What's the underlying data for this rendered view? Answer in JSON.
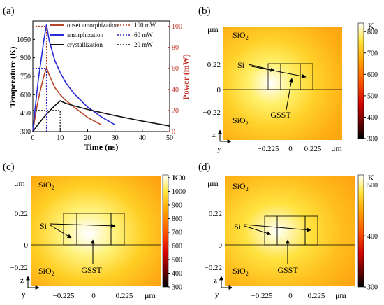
{
  "panel_a": {
    "label": "(a)",
    "xlabel": "Time (ns)",
    "ylabel_left": "Temperature (K)",
    "ylabel_right": "Power (mW)",
    "x_ticks": [
      "0",
      "10",
      "20",
      "30",
      "40",
      "50"
    ],
    "y_ticks_left": [
      "300",
      "450",
      "600",
      "750",
      "900",
      "1050"
    ],
    "y_ticks_right": [
      "0",
      "20",
      "40",
      "60",
      "80",
      "100"
    ],
    "legend_left": [
      "onset amorphization",
      "amorphization",
      "crystallization"
    ],
    "legend_right": [
      "100 mW",
      "60 mW",
      "20 mW"
    ]
  },
  "panel_b": {
    "label": "(b)",
    "colorbar_unit": "K",
    "colorbar_ticks": [
      "300",
      "400",
      "500",
      "600",
      "700",
      "800"
    ]
  },
  "panel_c": {
    "label": "(c)",
    "colorbar_unit": "K",
    "colorbar_ticks": [
      "300",
      "400",
      "500",
      "600",
      "700",
      "800",
      "900",
      "1000",
      "1100"
    ]
  },
  "panel_d": {
    "label": "(d)",
    "colorbar_unit": "K",
    "colorbar_ticks": [
      "300",
      "400",
      "500"
    ]
  },
  "map_labels": {
    "um": "μm",
    "sio2_sub": "2",
    "sio2_base": "SiO",
    "si": "Si",
    "gsst": "GSST",
    "y_tick_top": "0.22",
    "y_tick_mid": "0",
    "y_tick_bot": "−0.22",
    "x_ticks": [
      "−0.225",
      "0",
      "0.225"
    ],
    "axis_z": "z",
    "axis_y": "y"
  },
  "chart_data": [
    {
      "type": "line",
      "title": "",
      "xlabel": "Time (ns)",
      "ylabel": "Temperature (K)",
      "y2label": "Power (mW)",
      "xlim": [
        0,
        50
      ],
      "ylim": [
        300,
        1200
      ],
      "y2lim": [
        0,
        105
      ],
      "colors": {
        "onset": "#b5462a",
        "amorph": "#2a2ad6",
        "cryst": "#111111"
      },
      "series": [
        {
          "name": "onset amorphization",
          "axis": "left",
          "x": [
            0,
            1,
            2,
            3,
            4,
            5,
            6,
            8,
            10,
            12,
            15,
            18,
            20,
            25
          ],
          "y": [
            300,
            440,
            560,
            660,
            750,
            820,
            760,
            660,
            600,
            555,
            500,
            450,
            415,
            355
          ]
        },
        {
          "name": "amorphization",
          "axis": "left",
          "x": [
            0,
            1,
            2,
            3,
            4,
            5,
            6,
            8,
            10,
            12,
            15,
            20,
            25,
            30
          ],
          "y": [
            300,
            520,
            720,
            880,
            1040,
            1170,
            1040,
            880,
            780,
            700,
            610,
            500,
            420,
            355
          ]
        },
        {
          "name": "crystallization",
          "axis": "left",
          "x": [
            0,
            2,
            4,
            6,
            8,
            10,
            12,
            15,
            20,
            30,
            40,
            50
          ],
          "y": [
            300,
            360,
            415,
            465,
            510,
            550,
            530,
            510,
            480,
            430,
            385,
            345
          ]
        },
        {
          "name": "100 mW",
          "axis": "right",
          "x": [
            0,
            5,
            5
          ],
          "y": [
            100,
            100,
            0
          ]
        },
        {
          "name": "60 mW",
          "axis": "right",
          "x": [
            0,
            5,
            5
          ],
          "y": [
            60,
            60,
            0
          ]
        },
        {
          "name": "20 mW",
          "axis": "right",
          "x": [
            0,
            10,
            10
          ],
          "y": [
            20,
            20,
            0
          ]
        }
      ]
    },
    {
      "type": "heatmap",
      "panel": "b",
      "colorbar_range": [
        300,
        840
      ],
      "colorbar_ticks": [
        300,
        400,
        500,
        600,
        700,
        800
      ]
    },
    {
      "type": "heatmap",
      "panel": "c",
      "colorbar_range": [
        300,
        1120
      ],
      "colorbar_ticks": [
        300,
        400,
        500,
        600,
        700,
        800,
        900,
        1000,
        1100
      ]
    },
    {
      "type": "heatmap",
      "panel": "d",
      "colorbar_range": [
        300,
        520
      ],
      "colorbar_ticks": [
        300,
        400,
        500
      ]
    }
  ]
}
